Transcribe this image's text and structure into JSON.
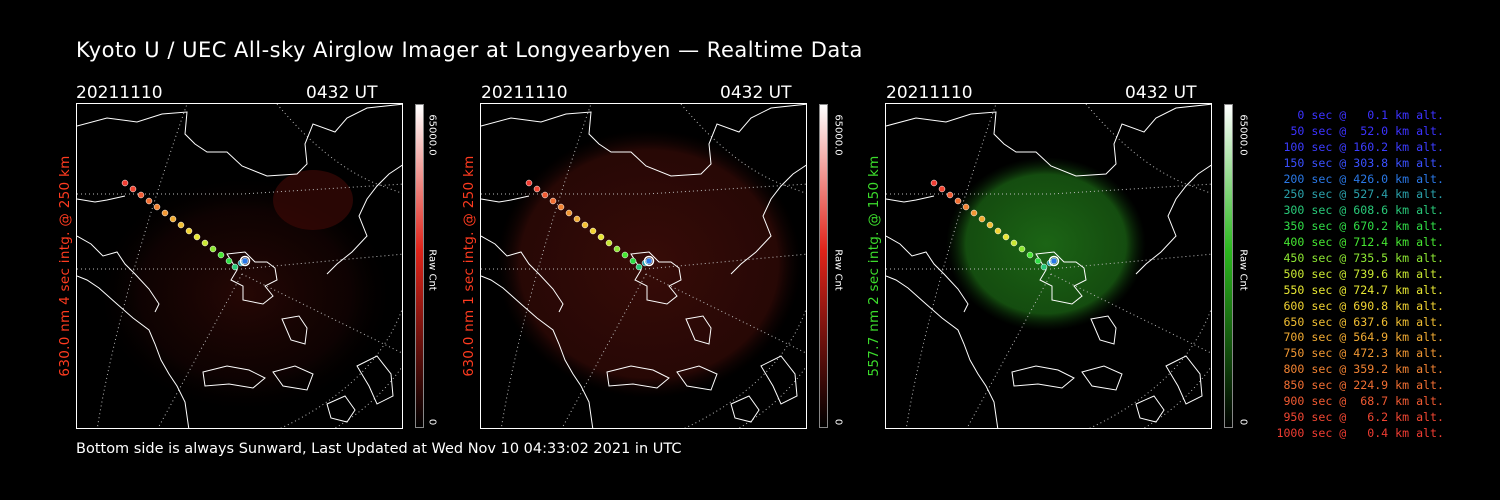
{
  "title": "Kyoto U / UEC All-sky Airglow Imager at Longyearbyen — Realtime Data",
  "footer": "Bottom side is always Sunward, Last Updated at Wed Nov 10 04:33:02 2021 in UTC",
  "panels": [
    {
      "date": "20211110",
      "time": "0432 UT",
      "side_label": "630.0 nm 4 sec intg. @ 250 km",
      "label_color": "#ff3b1f",
      "cbar_max": "65000.0",
      "cbar_min": "0",
      "cbar_label": "Raw Cnt",
      "cbar_color": "#e0241a",
      "glow": "faint-red"
    },
    {
      "date": "20211110",
      "time": "0432 UT",
      "side_label": "630.0 nm 1 sec intg. @ 250 km",
      "label_color": "#ff3b1f",
      "cbar_max": "65000.0",
      "cbar_min": "0",
      "cbar_label": "Raw Cnt",
      "cbar_color": "#e0241a",
      "glow": "red"
    },
    {
      "date": "20211110",
      "time": "0432 UT",
      "side_label": "557.7 nm 2 sec intg. @ 150 km",
      "label_color": "#3cdc2c",
      "cbar_max": "65000.0",
      "cbar_min": "0",
      "cbar_label": "Raw Cnt",
      "cbar_color": "#2bb81e",
      "glow": "green"
    }
  ],
  "legend": [
    {
      "text": "0 sec @   0.1 km alt.",
      "color": "#3c32ff"
    },
    {
      "text": "50 sec @  52.0 km alt.",
      "color": "#3c32ff"
    },
    {
      "text": "100 sec @ 160.2 km alt.",
      "color": "#3c3cff"
    },
    {
      "text": "150 sec @ 303.8 km alt.",
      "color": "#3a50ff"
    },
    {
      "text": "200 sec @ 426.0 km alt.",
      "color": "#2a78e6"
    },
    {
      "text": "250 sec @ 527.4 km alt.",
      "color": "#2aa0aa"
    },
    {
      "text": "300 sec @ 608.6 km alt.",
      "color": "#28c878"
    },
    {
      "text": "350 sec @ 670.2 km alt.",
      "color": "#30dc46"
    },
    {
      "text": "400 sec @ 712.4 km alt.",
      "color": "#46e632"
    },
    {
      "text": "450 sec @ 735.5 km alt.",
      "color": "#8ce632"
    },
    {
      "text": "500 sec @ 739.6 km alt.",
      "color": "#c8e632"
    },
    {
      "text": "550 sec @ 724.7 km alt.",
      "color": "#e6e632"
    },
    {
      "text": "600 sec @ 690.8 km alt.",
      "color": "#f0d232"
    },
    {
      "text": "650 sec @ 637.6 km alt.",
      "color": "#f0be32"
    },
    {
      "text": "700 sec @ 564.9 km alt.",
      "color": "#f0aa32"
    },
    {
      "text": "750 sec @ 472.3 km alt.",
      "color": "#f09632"
    },
    {
      "text": "800 sec @ 359.2 km alt.",
      "color": "#f08232"
    },
    {
      "text": "850 sec @ 224.9 km alt.",
      "color": "#f06e32"
    },
    {
      "text": "900 sec @  68.7 km alt.",
      "color": "#f05a32"
    },
    {
      "text": "950 sec @   6.2 km alt.",
      "color": "#f04632"
    },
    {
      "text": "1000 sec @   0.4 km alt.",
      "color": "#f03c32"
    }
  ]
}
